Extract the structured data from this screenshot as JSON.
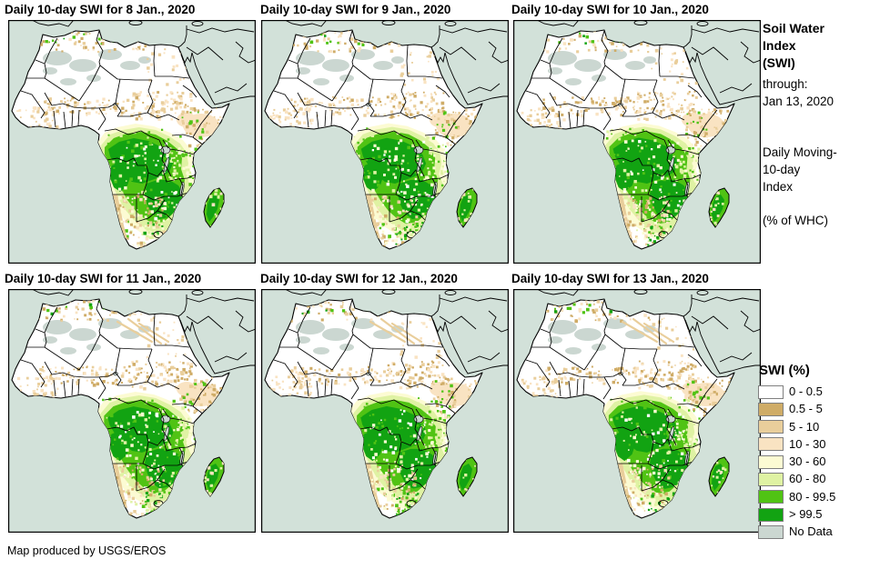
{
  "panels": [
    {
      "title": "Daily 10-day SWI for 8 Jan., 2020"
    },
    {
      "title": "Daily 10-day SWI for 9 Jan., 2020"
    },
    {
      "title": "Daily 10-day SWI for 10 Jan., 2020"
    },
    {
      "title": "Daily 10-day SWI for 11 Jan., 2020"
    },
    {
      "title": "Daily 10-day SWI for 12 Jan., 2020"
    },
    {
      "title": "Daily 10-day SWI for 13 Jan., 2020"
    }
  ],
  "sidebar": {
    "title_line1": "Soil Water",
    "title_line2": "Index",
    "title_line3": "(SWI)",
    "through_label": "through:",
    "through_date": "Jan 13, 2020",
    "index_line1": "Daily Moving-",
    "index_line2": "10-day",
    "index_line3": "Index",
    "units": "(% of WHC)"
  },
  "legend": {
    "title": "SWI (%)",
    "items": [
      {
        "label": "0 - 0.5",
        "color": "#FFFFFF"
      },
      {
        "label": "0.5 - 5",
        "color": "#CFAC67"
      },
      {
        "label": "5 - 10",
        "color": "#E9CE9B"
      },
      {
        "label": "10 - 30",
        "color": "#F9E3C2"
      },
      {
        "label": "30 - 60",
        "color": "#FCFBD3"
      },
      {
        "label": "60 - 80",
        "color": "#DFF2A3"
      },
      {
        "label": "80 - 99.5",
        "color": "#50C314"
      },
      {
        "label": "> 99.5",
        "color": "#12A312"
      },
      {
        "label": "No Data",
        "color": "#CBD7D1"
      }
    ]
  },
  "map_colors": {
    "ocean": "#D2E1D9",
    "land": "#FFFFFF",
    "border": "#000000",
    "swatch_border": "#7F7F7F"
  },
  "footer": "Map produced by USGS/EROS"
}
